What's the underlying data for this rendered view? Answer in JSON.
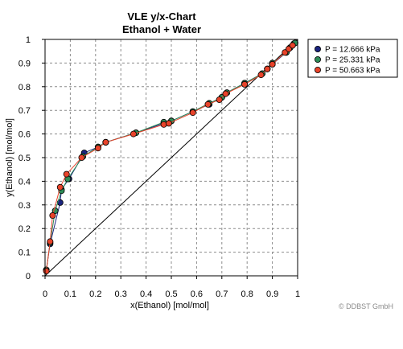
{
  "chart_data": {
    "type": "scatter",
    "title": "VLE y/x-Chart",
    "subtitle": "Ethanol + Water",
    "xlabel": "x(Ethanol) [mol/mol]",
    "ylabel": "y(Ethanol) [mol/mol]",
    "xlim": [
      0,
      1
    ],
    "ylim": [
      0,
      1
    ],
    "xticks": [
      "0",
      "0.1",
      "0.2",
      "0.3",
      "0.4",
      "0.5",
      "0.6",
      "0.7",
      "0.8",
      "0.9",
      "1"
    ],
    "yticks": [
      "0",
      "0.1",
      "0.2",
      "0.3",
      "0.4",
      "0.5",
      "0.6",
      "0.7",
      "0.8",
      "0.9",
      "1"
    ],
    "grid": true,
    "legend_position": "top-right-outside",
    "diagonal_line": true,
    "series": [
      {
        "name": "P = 12.666 kPa",
        "color": "#1a237e",
        "points": [
          [
            0.005,
            0.025
          ],
          [
            0.02,
            0.135
          ],
          [
            0.06,
            0.31
          ],
          [
            0.065,
            0.365
          ],
          [
            0.095,
            0.41
          ],
          [
            0.155,
            0.52
          ],
          [
            0.21,
            0.545
          ],
          [
            0.24,
            0.565
          ],
          [
            0.36,
            0.605
          ],
          [
            0.47,
            0.645
          ],
          [
            0.5,
            0.655
          ],
          [
            0.585,
            0.695
          ],
          [
            0.65,
            0.725
          ],
          [
            0.7,
            0.755
          ],
          [
            0.72,
            0.775
          ],
          [
            0.79,
            0.815
          ],
          [
            0.86,
            0.855
          ],
          [
            0.88,
            0.875
          ],
          [
            0.9,
            0.895
          ],
          [
            0.955,
            0.945
          ],
          [
            0.97,
            0.965
          ],
          [
            0.985,
            0.982
          ]
        ]
      },
      {
        "name": "P = 25.331 kPa",
        "color": "#2e8b57",
        "points": [
          [
            0.005,
            0.025
          ],
          [
            0.02,
            0.14
          ],
          [
            0.04,
            0.275
          ],
          [
            0.065,
            0.36
          ],
          [
            0.09,
            0.41
          ],
          [
            0.15,
            0.505
          ],
          [
            0.21,
            0.545
          ],
          [
            0.24,
            0.565
          ],
          [
            0.36,
            0.605
          ],
          [
            0.47,
            0.65
          ],
          [
            0.5,
            0.655
          ],
          [
            0.585,
            0.695
          ],
          [
            0.65,
            0.73
          ],
          [
            0.7,
            0.755
          ],
          [
            0.72,
            0.775
          ],
          [
            0.79,
            0.815
          ],
          [
            0.86,
            0.855
          ],
          [
            0.88,
            0.875
          ],
          [
            0.9,
            0.9
          ],
          [
            0.955,
            0.945
          ],
          [
            0.97,
            0.965
          ],
          [
            0.99,
            0.985
          ]
        ]
      },
      {
        "name": "P = 50.663 kPa",
        "color": "#e8432a",
        "points": [
          [
            0.005,
            0.02
          ],
          [
            0.02,
            0.145
          ],
          [
            0.03,
            0.255
          ],
          [
            0.06,
            0.375
          ],
          [
            0.085,
            0.43
          ],
          [
            0.145,
            0.5
          ],
          [
            0.21,
            0.54
          ],
          [
            0.24,
            0.565
          ],
          [
            0.35,
            0.6
          ],
          [
            0.47,
            0.64
          ],
          [
            0.49,
            0.645
          ],
          [
            0.585,
            0.69
          ],
          [
            0.645,
            0.725
          ],
          [
            0.69,
            0.745
          ],
          [
            0.715,
            0.77
          ],
          [
            0.79,
            0.81
          ],
          [
            0.855,
            0.85
          ],
          [
            0.88,
            0.875
          ],
          [
            0.9,
            0.895
          ],
          [
            0.95,
            0.945
          ],
          [
            0.965,
            0.96
          ],
          [
            0.98,
            0.975
          ]
        ]
      }
    ]
  },
  "credit": "© DDBST GmbH"
}
